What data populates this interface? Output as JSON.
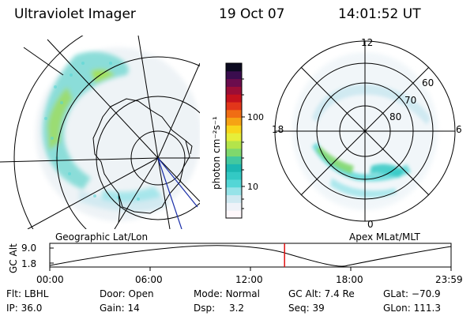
{
  "header": {
    "title": "Ultraviolet Imager",
    "date": "19 Oct 07",
    "time": "14:01:52 UT"
  },
  "left_panel": {
    "caption": "Geographic Lat/Lon"
  },
  "right_panel": {
    "caption": "Apex MLat/MLT",
    "mlt_labels": [
      "12",
      "18",
      "6",
      "0"
    ],
    "lat_labels": [
      "60",
      "70",
      "80"
    ]
  },
  "colorbar": {
    "unit_label": "photon cm⁻²s⁻¹",
    "tick_labels": [
      "100",
      "10"
    ],
    "colors": [
      "#fff8fb",
      "#eef2f8",
      "#cfe9f1",
      "#96e3e8",
      "#54d6d6",
      "#33c9c4",
      "#1db8b2",
      "#43c8a0",
      "#7fd86d",
      "#b4e44a",
      "#e6ee3a",
      "#f8d61b",
      "#f6a314",
      "#f06d14",
      "#e2361a",
      "#c4121d",
      "#9b0e36",
      "#6b0c4d",
      "#3a0d4e",
      "#0c0a20"
    ]
  },
  "altitude_plot": {
    "axis_title": "GC Alt",
    "y_ticks": [
      "9.0",
      "1.8"
    ],
    "x_ticks": [
      "00:00",
      "06:00",
      "12:00",
      "18:00",
      "23:59"
    ],
    "current_time_fraction": 0.585,
    "marker_color": "#e01010"
  },
  "info_rows": [
    [
      {
        "label": "Flt:",
        "value": "LBHL"
      },
      {
        "label": "Door:",
        "value": "Open"
      },
      {
        "label": "Mode:",
        "value": "Normal"
      },
      {
        "label": "GC Alt:",
        "value": "7.4 Re"
      },
      {
        "label": "GLat:",
        "value": "−70.9"
      }
    ],
    [
      {
        "label": "IP:",
        "value": "36.0"
      },
      {
        "label": "Gain:",
        "value": "14"
      },
      {
        "label": "Dsp:",
        "value": "3.2"
      },
      {
        "label": "Seq:",
        "value": "39"
      },
      {
        "label": "GLon:",
        "value": "111.3"
      }
    ]
  ]
}
